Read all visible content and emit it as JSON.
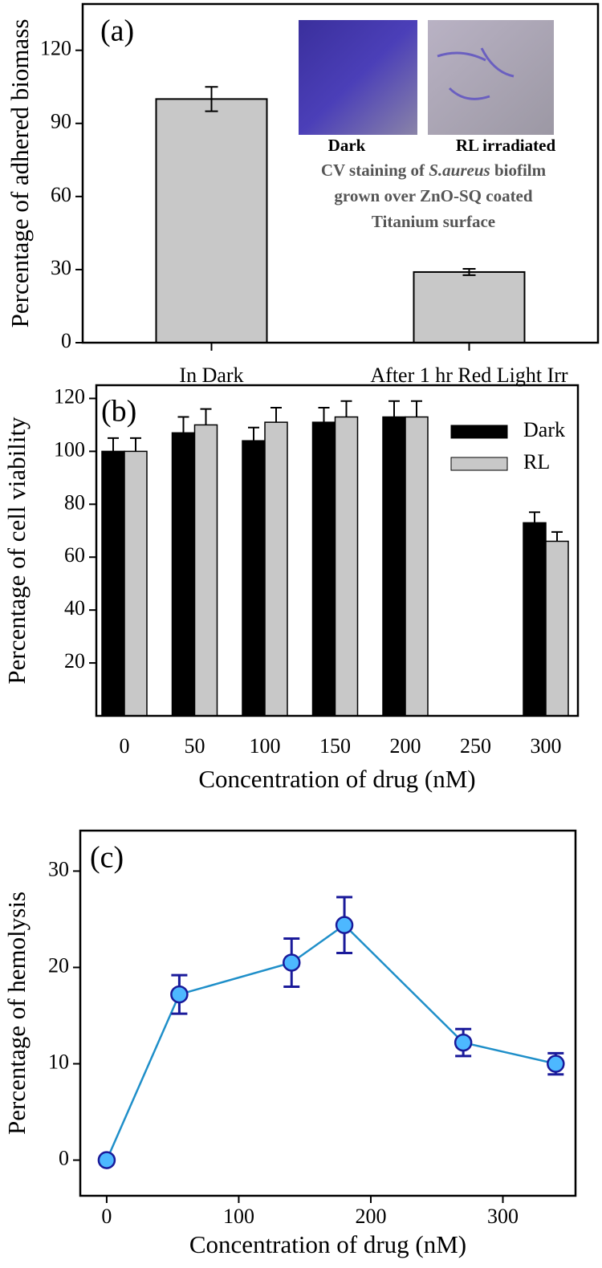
{
  "chart_data": [
    {
      "type": "bar",
      "panel_label": "(a)",
      "ylabel": "Percentage of adhered biomass",
      "categories": [
        "In Dark",
        "After 1 hr Red Light Irr"
      ],
      "values": [
        100,
        29
      ],
      "errors": [
        5,
        1.3
      ],
      "color": "#c8c8c8",
      "ylim": [
        0,
        139
      ],
      "yticks": [
        0,
        30,
        60,
        90,
        120
      ],
      "inset": {
        "image_labels": [
          "Dark",
          "RL irradiated"
        ],
        "caption_line1": [
          "CV staining of ",
          "S.aureus",
          " biofilm"
        ],
        "caption_line2": "grown over ZnO-SQ coated",
        "caption_line3": "Titanium surface"
      }
    },
    {
      "type": "bar",
      "panel_label": "(b)",
      "ylabel": "Percentage of cell viability",
      "xlabel": "Concentration of drug (nM)",
      "categories": [
        "0",
        "50",
        "100",
        "150",
        "200",
        "250",
        "300"
      ],
      "series": [
        {
          "name": "Dark",
          "color": "#000000",
          "values": [
            100,
            107,
            104,
            111,
            113,
            null,
            73
          ],
          "errors": [
            5,
            6,
            5,
            5.5,
            6,
            null,
            4
          ]
        },
        {
          "name": "RL",
          "color": "#c8c8c8",
          "values": [
            100,
            110,
            111,
            113,
            113,
            null,
            66
          ],
          "errors": [
            5,
            6,
            5.5,
            6,
            6,
            null,
            3.5
          ]
        }
      ],
      "ylim": [
        0,
        125
      ],
      "yticks": [
        20,
        40,
        60,
        80,
        100,
        120
      ],
      "legend": "top-right"
    },
    {
      "type": "line",
      "panel_label": "(c)",
      "ylabel": "Percentage of hemolysis",
      "xlabel": "Concentration of drug (nM)",
      "x": [
        0,
        55,
        140,
        180,
        270,
        340
      ],
      "values": [
        0,
        17.2,
        20.5,
        24.4,
        12.2,
        10
      ],
      "errors": [
        0,
        2,
        2.5,
        2.9,
        1.4,
        1.1
      ],
      "color": "#1f8fc9",
      "marker_color": "#4db8ff",
      "error_color": "#1a1a9a",
      "xlim": [
        -20,
        355
      ],
      "xticks": [
        0,
        100,
        200,
        300
      ],
      "ylim": [
        -3.7,
        34.2
      ],
      "yticks": [
        0,
        10,
        20,
        30
      ]
    }
  ]
}
